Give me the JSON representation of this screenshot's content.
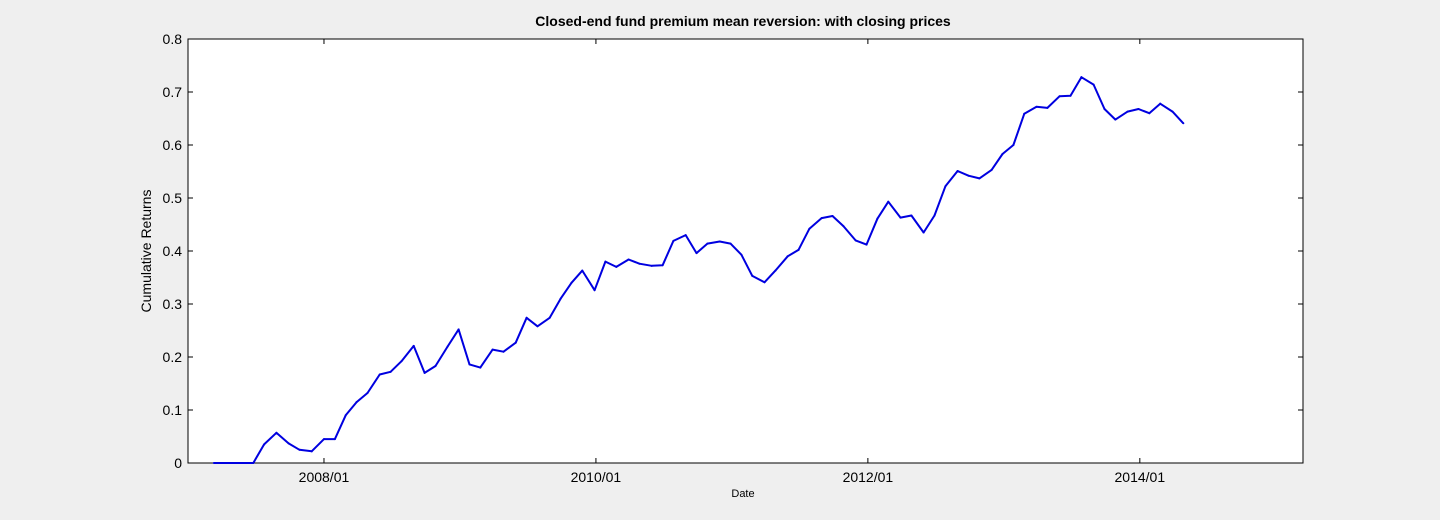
{
  "chart_data": {
    "type": "line",
    "title": "Closed-end fund premium mean reversion: with closing prices",
    "xlabel": "Date",
    "ylabel": "Cumulative Returns",
    "xlim": [
      2007.0,
      2015.2
    ],
    "ylim": [
      0,
      0.8
    ],
    "grid": false,
    "line_color": "#0000e0",
    "x_ticks": [
      {
        "value": 2008.0,
        "label": "2008/01"
      },
      {
        "value": 2010.0,
        "label": "2010/01"
      },
      {
        "value": 2012.0,
        "label": "2012/01"
      },
      {
        "value": 2014.0,
        "label": "2014/01"
      }
    ],
    "y_ticks": [
      {
        "value": 0,
        "label": "0"
      },
      {
        "value": 0.1,
        "label": "0.1"
      },
      {
        "value": 0.2,
        "label": "0.2"
      },
      {
        "value": 0.3,
        "label": "0.3"
      },
      {
        "value": 0.4,
        "label": "0.4"
      },
      {
        "value": 0.5,
        "label": "0.5"
      },
      {
        "value": 0.6,
        "label": "0.6"
      },
      {
        "value": 0.7,
        "label": "0.7"
      },
      {
        "value": 0.8,
        "label": "0.8"
      }
    ],
    "series": [
      {
        "name": "Cumulative Returns",
        "points": [
          [
            2007.19,
            0
          ],
          [
            2007.33,
            0
          ],
          [
            2007.48,
            0
          ],
          [
            2007.56,
            0.035
          ],
          [
            2007.65,
            0.057
          ],
          [
            2007.74,
            0.037
          ],
          [
            2007.82,
            0.025
          ],
          [
            2007.91,
            0.022
          ],
          [
            2008.0,
            0.045
          ],
          [
            2008.08,
            0.045
          ],
          [
            2008.16,
            0.09
          ],
          [
            2008.24,
            0.115
          ],
          [
            2008.32,
            0.132
          ],
          [
            2008.41,
            0.167
          ],
          [
            2008.49,
            0.172
          ],
          [
            2008.57,
            0.192
          ],
          [
            2008.66,
            0.221
          ],
          [
            2008.74,
            0.17
          ],
          [
            2008.82,
            0.183
          ],
          [
            2008.91,
            0.22
          ],
          [
            2008.99,
            0.252
          ],
          [
            2009.07,
            0.186
          ],
          [
            2009.15,
            0.18
          ],
          [
            2009.24,
            0.214
          ],
          [
            2009.32,
            0.21
          ],
          [
            2009.41,
            0.227
          ],
          [
            2009.49,
            0.274
          ],
          [
            2009.57,
            0.258
          ],
          [
            2009.66,
            0.274
          ],
          [
            2009.74,
            0.31
          ],
          [
            2009.82,
            0.34
          ],
          [
            2009.9,
            0.363
          ],
          [
            2009.99,
            0.326
          ],
          [
            2010.07,
            0.38
          ],
          [
            2010.15,
            0.37
          ],
          [
            2010.24,
            0.384
          ],
          [
            2010.32,
            0.376
          ],
          [
            2010.41,
            0.372
          ],
          [
            2010.49,
            0.373
          ],
          [
            2010.57,
            0.419
          ],
          [
            2010.66,
            0.43
          ],
          [
            2010.74,
            0.396
          ],
          [
            2010.82,
            0.414
          ],
          [
            2010.91,
            0.418
          ],
          [
            2010.99,
            0.414
          ],
          [
            2011.07,
            0.393
          ],
          [
            2011.15,
            0.353
          ],
          [
            2011.24,
            0.341
          ],
          [
            2011.32,
            0.363
          ],
          [
            2011.41,
            0.39
          ],
          [
            2011.49,
            0.402
          ],
          [
            2011.57,
            0.442
          ],
          [
            2011.66,
            0.462
          ],
          [
            2011.74,
            0.466
          ],
          [
            2011.82,
            0.447
          ],
          [
            2011.91,
            0.42
          ],
          [
            2011.99,
            0.412
          ],
          [
            2012.07,
            0.461
          ],
          [
            2012.15,
            0.493
          ],
          [
            2012.24,
            0.463
          ],
          [
            2012.32,
            0.467
          ],
          [
            2012.41,
            0.435
          ],
          [
            2012.49,
            0.467
          ],
          [
            2012.57,
            0.522
          ],
          [
            2012.66,
            0.551
          ],
          [
            2012.74,
            0.542
          ],
          [
            2012.82,
            0.537
          ],
          [
            2012.91,
            0.553
          ],
          [
            2012.99,
            0.583
          ],
          [
            2013.07,
            0.6
          ],
          [
            2013.15,
            0.659
          ],
          [
            2013.24,
            0.672
          ],
          [
            2013.32,
            0.67
          ],
          [
            2013.41,
            0.692
          ],
          [
            2013.49,
            0.693
          ],
          [
            2013.57,
            0.728
          ],
          [
            2013.66,
            0.714
          ],
          [
            2013.74,
            0.668
          ],
          [
            2013.82,
            0.648
          ],
          [
            2013.91,
            0.663
          ],
          [
            2013.99,
            0.668
          ],
          [
            2014.07,
            0.66
          ],
          [
            2014.15,
            0.678
          ],
          [
            2014.24,
            0.663
          ],
          [
            2014.32,
            0.641
          ]
        ]
      }
    ]
  }
}
